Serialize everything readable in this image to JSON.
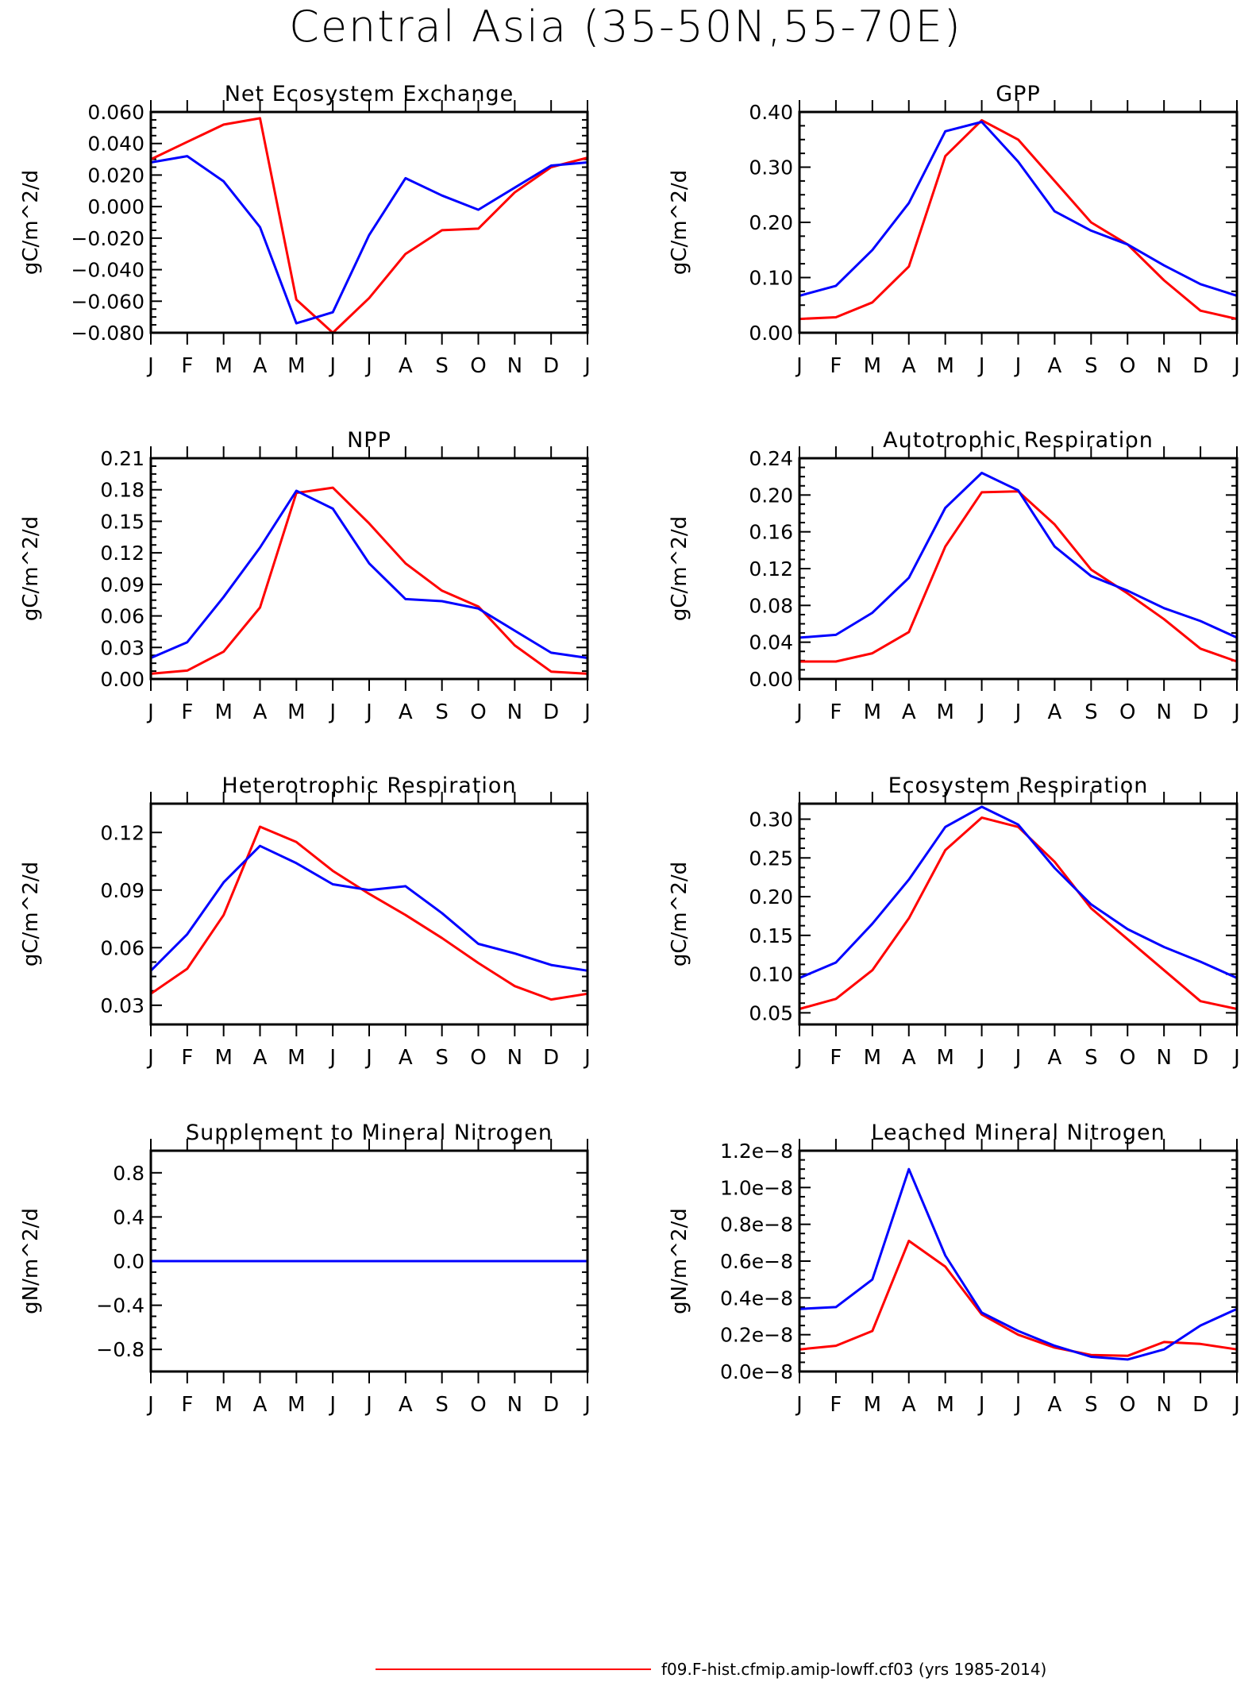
{
  "page_title": "Central Asia (35-50N,55-70E)",
  "legend": {
    "label": "f09.F-hist.cfmip.amip-lowff.cf03 (yrs 1985-2014)",
    "color": "#ff0000"
  },
  "colors": {
    "series_red": "#ff0000",
    "series_blue": "#0000ff"
  },
  "chart_data": [
    {
      "type": "line",
      "title": "Net Ecosystem Exchange",
      "ylabel": "gC/m^2/d",
      "categories": [
        "J",
        "F",
        "M",
        "A",
        "M",
        "J",
        "J",
        "A",
        "S",
        "O",
        "N",
        "D",
        "J"
      ],
      "ylim": [
        -0.08,
        0.06
      ],
      "yticks": [
        -0.08,
        -0.06,
        -0.04,
        -0.02,
        0.0,
        0.02,
        0.04,
        0.06
      ],
      "ytick_labels": [
        "−0.080",
        "−0.060",
        "−0.040",
        "−0.020",
        "0.000",
        "0.020",
        "0.040",
        "0.060"
      ],
      "series": [
        {
          "color": "#ff0000",
          "values": [
            0.03,
            0.041,
            0.052,
            0.056,
            -0.059,
            -0.08,
            -0.058,
            -0.03,
            -0.015,
            -0.014,
            0.009,
            0.025,
            0.031
          ]
        },
        {
          "color": "#0000ff",
          "values": [
            0.028,
            0.032,
            0.016,
            -0.013,
            -0.074,
            -0.067,
            -0.018,
            0.018,
            0.007,
            -0.002,
            0.012,
            0.026,
            0.028
          ]
        }
      ]
    },
    {
      "type": "line",
      "title": "GPP",
      "ylabel": "gC/m^2/d",
      "categories": [
        "J",
        "F",
        "M",
        "A",
        "M",
        "J",
        "J",
        "A",
        "S",
        "O",
        "N",
        "D",
        "J"
      ],
      "ylim": [
        0.0,
        0.4
      ],
      "yticks": [
        0.0,
        0.1,
        0.2,
        0.3,
        0.4
      ],
      "ytick_labels": [
        "0.00",
        "0.10",
        "0.20",
        "0.30",
        "0.40"
      ],
      "series": [
        {
          "color": "#ff0000",
          "values": [
            0.025,
            0.028,
            0.055,
            0.12,
            0.32,
            0.385,
            0.35,
            0.275,
            0.2,
            0.16,
            0.095,
            0.04,
            0.025
          ]
        },
        {
          "color": "#0000ff",
          "values": [
            0.067,
            0.085,
            0.15,
            0.235,
            0.365,
            0.382,
            0.31,
            0.22,
            0.185,
            0.16,
            0.122,
            0.088,
            0.067
          ]
        }
      ]
    },
    {
      "type": "line",
      "title": "NPP",
      "ylabel": "gC/m^2/d",
      "categories": [
        "J",
        "F",
        "M",
        "A",
        "M",
        "J",
        "J",
        "A",
        "S",
        "O",
        "N",
        "D",
        "J"
      ],
      "ylim": [
        0.0,
        0.21
      ],
      "yticks": [
        0.0,
        0.03,
        0.06,
        0.09,
        0.12,
        0.15,
        0.18,
        0.21
      ],
      "ytick_labels": [
        "0.00",
        "0.03",
        "0.06",
        "0.09",
        "0.12",
        "0.15",
        "0.18",
        "0.21"
      ],
      "series": [
        {
          "color": "#ff0000",
          "values": [
            0.005,
            0.008,
            0.026,
            0.068,
            0.177,
            0.182,
            0.148,
            0.11,
            0.084,
            0.069,
            0.032,
            0.007,
            0.005
          ]
        },
        {
          "color": "#0000ff",
          "values": [
            0.02,
            0.035,
            0.078,
            0.125,
            0.179,
            0.162,
            0.11,
            0.076,
            0.074,
            0.067,
            0.046,
            0.025,
            0.02
          ]
        }
      ]
    },
    {
      "type": "line",
      "title": "Autotrophic Respiration",
      "ylabel": "gC/m^2/d",
      "categories": [
        "J",
        "F",
        "M",
        "A",
        "M",
        "J",
        "J",
        "A",
        "S",
        "O",
        "N",
        "D",
        "J"
      ],
      "ylim": [
        0.0,
        0.24
      ],
      "yticks": [
        0.0,
        0.04,
        0.08,
        0.12,
        0.16,
        0.2,
        0.24
      ],
      "ytick_labels": [
        "0.00",
        "0.04",
        "0.08",
        "0.12",
        "0.16",
        "0.20",
        "0.24"
      ],
      "series": [
        {
          "color": "#ff0000",
          "values": [
            0.019,
            0.019,
            0.028,
            0.051,
            0.144,
            0.203,
            0.204,
            0.168,
            0.119,
            0.093,
            0.065,
            0.033,
            0.019
          ]
        },
        {
          "color": "#0000ff",
          "values": [
            0.045,
            0.048,
            0.072,
            0.11,
            0.186,
            0.224,
            0.205,
            0.144,
            0.112,
            0.096,
            0.077,
            0.063,
            0.045
          ]
        }
      ]
    },
    {
      "type": "line",
      "title": "Heterotrophic Respiration",
      "ylabel": "gC/m^2/d",
      "categories": [
        "J",
        "F",
        "M",
        "A",
        "M",
        "J",
        "J",
        "A",
        "S",
        "O",
        "N",
        "D",
        "J"
      ],
      "ylim": [
        0.02,
        0.135
      ],
      "yticks": [
        0.03,
        0.06,
        0.09,
        0.12
      ],
      "ytick_labels": [
        "0.03",
        "0.06",
        "0.09",
        "0.12"
      ],
      "series": [
        {
          "color": "#ff0000",
          "values": [
            0.036,
            0.049,
            0.077,
            0.123,
            0.115,
            0.1,
            0.088,
            0.077,
            0.065,
            0.052,
            0.04,
            0.033,
            0.036
          ]
        },
        {
          "color": "#0000ff",
          "values": [
            0.048,
            0.067,
            0.094,
            0.113,
            0.104,
            0.093,
            0.09,
            0.092,
            0.078,
            0.062,
            0.057,
            0.051,
            0.048
          ]
        }
      ]
    },
    {
      "type": "line",
      "title": "Ecosystem Respiration",
      "ylabel": "gC/m^2/d",
      "categories": [
        "J",
        "F",
        "M",
        "A",
        "M",
        "J",
        "J",
        "A",
        "S",
        "O",
        "N",
        "D",
        "J"
      ],
      "ylim": [
        0.035,
        0.32
      ],
      "yticks": [
        0.05,
        0.1,
        0.15,
        0.2,
        0.25,
        0.3
      ],
      "ytick_labels": [
        "0.05",
        "0.10",
        "0.15",
        "0.20",
        "0.25",
        "0.30"
      ],
      "series": [
        {
          "color": "#ff0000",
          "values": [
            0.055,
            0.068,
            0.105,
            0.172,
            0.26,
            0.302,
            0.29,
            0.245,
            0.185,
            0.145,
            0.105,
            0.065,
            0.055
          ]
        },
        {
          "color": "#0000ff",
          "values": [
            0.095,
            0.115,
            0.165,
            0.222,
            0.29,
            0.316,
            0.293,
            0.237,
            0.19,
            0.158,
            0.135,
            0.116,
            0.095
          ]
        }
      ]
    },
    {
      "type": "line",
      "title": "Supplement to Mineral Nitrogen",
      "ylabel": "gN/m^2/d",
      "categories": [
        "J",
        "F",
        "M",
        "A",
        "M",
        "J",
        "J",
        "A",
        "S",
        "O",
        "N",
        "D",
        "J"
      ],
      "ylim": [
        -1.0,
        1.0
      ],
      "yticks": [
        -0.8,
        -0.4,
        0.0,
        0.4,
        0.8
      ],
      "ytick_labels": [
        "−0.8",
        "−0.4",
        "0.0",
        "0.4",
        "0.8"
      ],
      "series": [
        {
          "color": "#ff0000",
          "values": [
            0,
            0,
            0,
            0,
            0,
            0,
            0,
            0,
            0,
            0,
            0,
            0,
            0
          ]
        },
        {
          "color": "#0000ff",
          "values": [
            0,
            0,
            0,
            0,
            0,
            0,
            0,
            0,
            0,
            0,
            0,
            0,
            0
          ]
        }
      ]
    },
    {
      "type": "line",
      "title": "Leached Mineral Nitrogen",
      "ylabel": "gN/m^2/d",
      "categories": [
        "J",
        "F",
        "M",
        "A",
        "M",
        "J",
        "J",
        "A",
        "S",
        "O",
        "N",
        "D",
        "J"
      ],
      "ylim": [
        0.0,
        1.2
      ],
      "yticks": [
        0.0,
        0.2,
        0.4,
        0.6,
        0.8,
        1.0,
        1.2
      ],
      "ytick_labels": [
        "0.0e−8",
        "0.2e−8",
        "0.4e−8",
        "0.6e−8",
        "0.8e−8",
        "1.0e−8",
        "1.2e−8"
      ],
      "series": [
        {
          "color": "#ff0000",
          "values": [
            0.12,
            0.14,
            0.22,
            0.71,
            0.57,
            0.31,
            0.2,
            0.13,
            0.09,
            0.085,
            0.16,
            0.15,
            0.12
          ]
        },
        {
          "color": "#0000ff",
          "values": [
            0.34,
            0.35,
            0.5,
            1.1,
            0.63,
            0.32,
            0.22,
            0.14,
            0.08,
            0.065,
            0.12,
            0.25,
            0.34
          ]
        }
      ]
    }
  ]
}
